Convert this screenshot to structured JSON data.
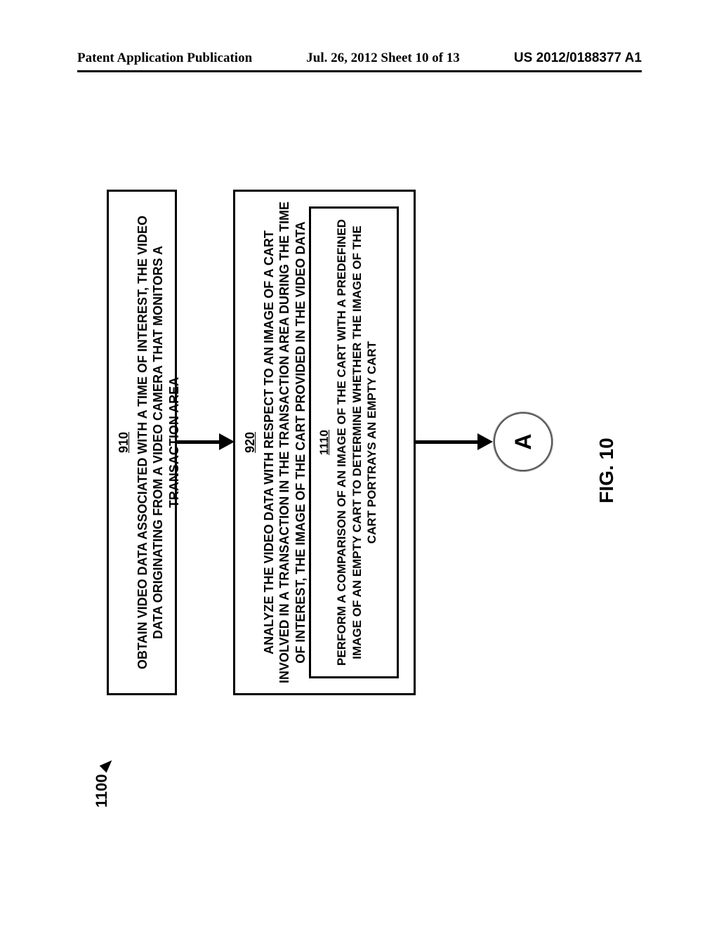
{
  "header": {
    "left": "Patent Application Publication",
    "center": "Jul. 26, 2012  Sheet 10 of 13",
    "right": "US 2012/0188377 A1"
  },
  "diagram": {
    "ref_label": "1100",
    "box910": {
      "num": "910",
      "text": "OBTAIN VIDEO DATA ASSOCIATED WITH A TIME OF INTEREST, THE VIDEO DATA ORIGINATING FROM A VIDEO CAMERA THAT MONITORS A TRANSACTION AREA"
    },
    "box920": {
      "num": "920",
      "text": "ANALYZE THE VIDEO DATA WITH RESPECT TO AN IMAGE OF A CART INVOLVED IN A TRANSACTION IN THE TRANSACTION AREA DURING THE TIME OF INTEREST, THE IMAGE OF THE CART PROVIDED IN THE VIDEO DATA"
    },
    "box1110": {
      "num": "1110",
      "text": "PERFORM A COMPARISON OF AN IMAGE OF THE CART WITH A PREDEFINED IMAGE OF AN EMPTY CART TO DETERMINE WHETHER THE IMAGE OF THE CART PORTRAYS AN EMPTY CART"
    },
    "connector_label": "A",
    "figure_label": "FIG. 10"
  }
}
